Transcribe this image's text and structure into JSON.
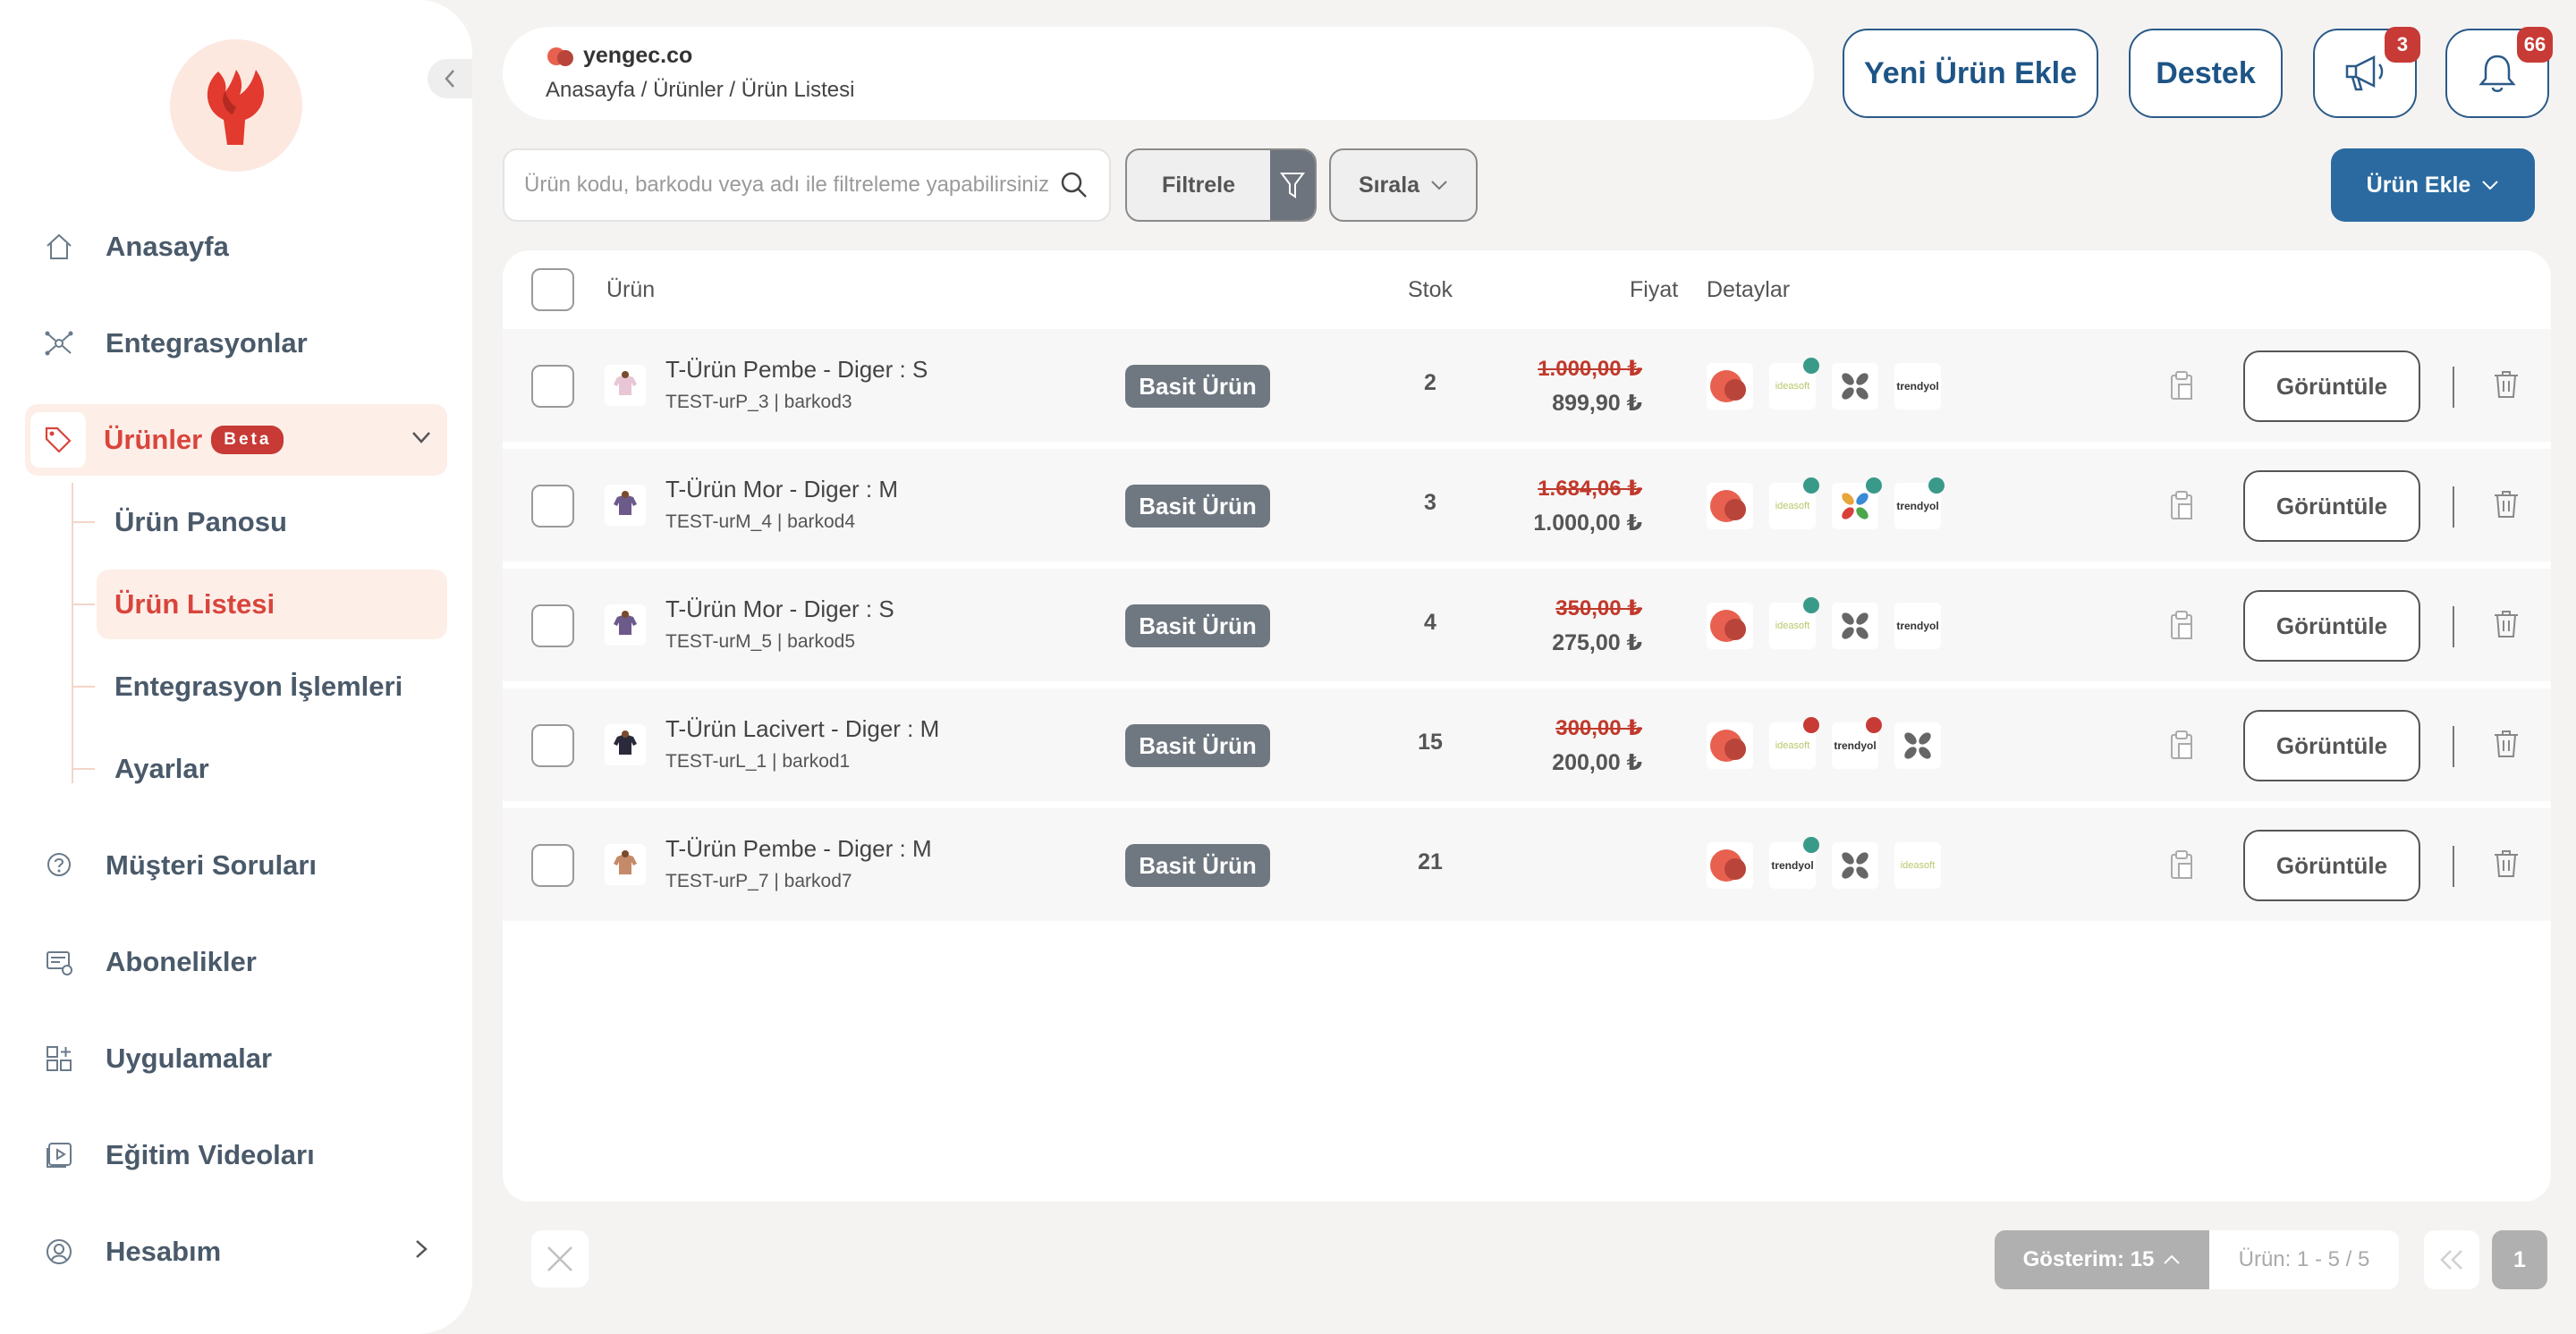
{
  "sidebar": {
    "nav": [
      {
        "label": "Anasayfa",
        "icon": "home-icon"
      },
      {
        "label": "Entegrasyonlar",
        "icon": "integrations-icon"
      },
      {
        "label": "Ürünler",
        "icon": "tag-icon",
        "badge": "Beta"
      },
      {
        "label": "Müşteri Soruları",
        "icon": "question-icon"
      },
      {
        "label": "Abonelikler",
        "icon": "subscription-icon"
      },
      {
        "label": "Uygulamalar",
        "icon": "apps-icon"
      },
      {
        "label": "Eğitim Videoları",
        "icon": "video-icon"
      },
      {
        "label": "Hesabım",
        "icon": "user-icon"
      }
    ],
    "subnav": [
      {
        "label": "Ürün Panosu"
      },
      {
        "label": "Ürün Listesi"
      },
      {
        "label": "Entegrasyon İşlemleri"
      },
      {
        "label": "Ayarlar"
      }
    ]
  },
  "header": {
    "brand": "yengec.co",
    "breadcrumb": "Anasayfa / Ürünler / Ürün Listesi",
    "new_product": "Yeni Ürün Ekle",
    "support": "Destek",
    "announcements_count": "3",
    "notifications_count": "66"
  },
  "toolbar": {
    "search_placeholder": "Ürün kodu, barkodu veya adı ile filtreleme yapabilirsiniz",
    "filter": "Filtrele",
    "sort": "Sırala",
    "add_product": "Ürün Ekle"
  },
  "table": {
    "columns": {
      "product": "Ürün",
      "stock": "Stok",
      "price": "Fiyat",
      "details": "Detaylar"
    },
    "view_label": "Görüntüle",
    "rows": [
      {
        "name": "T-Ürün Pembe - Diger : S",
        "sub": "TEST-urP_3 | barkod3",
        "type": "Basit Ürün",
        "stock": "2",
        "old_price": "1.000,00 ₺",
        "price": "899,90 ₺",
        "markets": [
          {
            "k": "yengec"
          },
          {
            "k": "ideasoft",
            "dot": "#3a9a8a"
          },
          {
            "k": "cross"
          },
          {
            "k": "trendyol"
          }
        ]
      },
      {
        "name": "T-Ürün Mor - Diger : M",
        "sub": "TEST-urM_4 | barkod4",
        "type": "Basit Ürün",
        "stock": "3",
        "old_price": "1.684,06 ₺",
        "price": "1.000,00 ₺",
        "markets": [
          {
            "k": "yengec"
          },
          {
            "k": "ideasoft",
            "dot": "#3a9a8a"
          },
          {
            "k": "colorcross",
            "dot": "#3a9a8a"
          },
          {
            "k": "trendyol",
            "dot": "#3a9a8a"
          }
        ]
      },
      {
        "name": "T-Ürün Mor - Diger : S",
        "sub": "TEST-urM_5 | barkod5",
        "type": "Basit Ürün",
        "stock": "4",
        "old_price": "350,00 ₺",
        "price": "275,00 ₺",
        "markets": [
          {
            "k": "yengec"
          },
          {
            "k": "ideasoft",
            "dot": "#3a9a8a"
          },
          {
            "k": "cross"
          },
          {
            "k": "trendyol"
          }
        ]
      },
      {
        "name": "T-Ürün Lacivert - Diger : M",
        "sub": "TEST-urL_1 | barkod1",
        "type": "Basit Ürün",
        "stock": "15",
        "old_price": "300,00 ₺",
        "price": "200,00 ₺",
        "markets": [
          {
            "k": "yengec"
          },
          {
            "k": "ideasoft",
            "dot": "#c73a35"
          },
          {
            "k": "trendyol",
            "dot": "#c73a35"
          },
          {
            "k": "cross"
          }
        ]
      },
      {
        "name": "T-Ürün Pembe - Diger : M",
        "sub": "TEST-urP_7 | barkod7",
        "type": "Basit Ürün",
        "stock": "21",
        "old_price": "",
        "price": "",
        "markets": [
          {
            "k": "yengec"
          },
          {
            "k": "trendyol",
            "dot": "#3a9a8a"
          },
          {
            "k": "cross"
          },
          {
            "k": "ideasoft"
          }
        ]
      }
    ]
  },
  "market_labels": {
    "ideasoft": "ideasoft",
    "trendyol": "trendyol"
  },
  "footer": {
    "show": "Gösterim: 15",
    "range": "Ürün: 1 - 5 / 5",
    "page": "1"
  },
  "colors": {
    "accent": "#d9453c",
    "primary": "#1d5485",
    "badge": "#c73a35"
  }
}
